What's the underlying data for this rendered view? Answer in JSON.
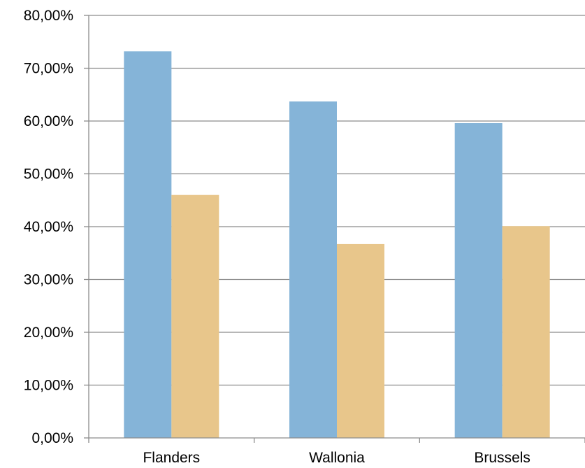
{
  "chart_data": {
    "type": "bar",
    "categories": [
      "Flanders",
      "Wallonia",
      "Brussels"
    ],
    "series": [
      {
        "values": [
          73.2,
          63.7,
          59.6
        ],
        "color": "#85b4d8"
      },
      {
        "values": [
          46.0,
          36.7,
          40.1
        ],
        "color": "#e8c68b"
      }
    ],
    "ylim": [
      0,
      80
    ],
    "yticks": [
      0,
      10,
      20,
      30,
      40,
      50,
      60,
      70,
      80
    ],
    "ytick_labels": [
      "0,00%",
      "10,00%",
      "20,00%",
      "30,00%",
      "40,00%",
      "50,00%",
      "60,00%",
      "70,00%",
      "80,00%"
    ],
    "grid": true,
    "legend": "none",
    "colors": {
      "gridline": "#8c8c8c",
      "axis": "#8c8c8c"
    }
  }
}
